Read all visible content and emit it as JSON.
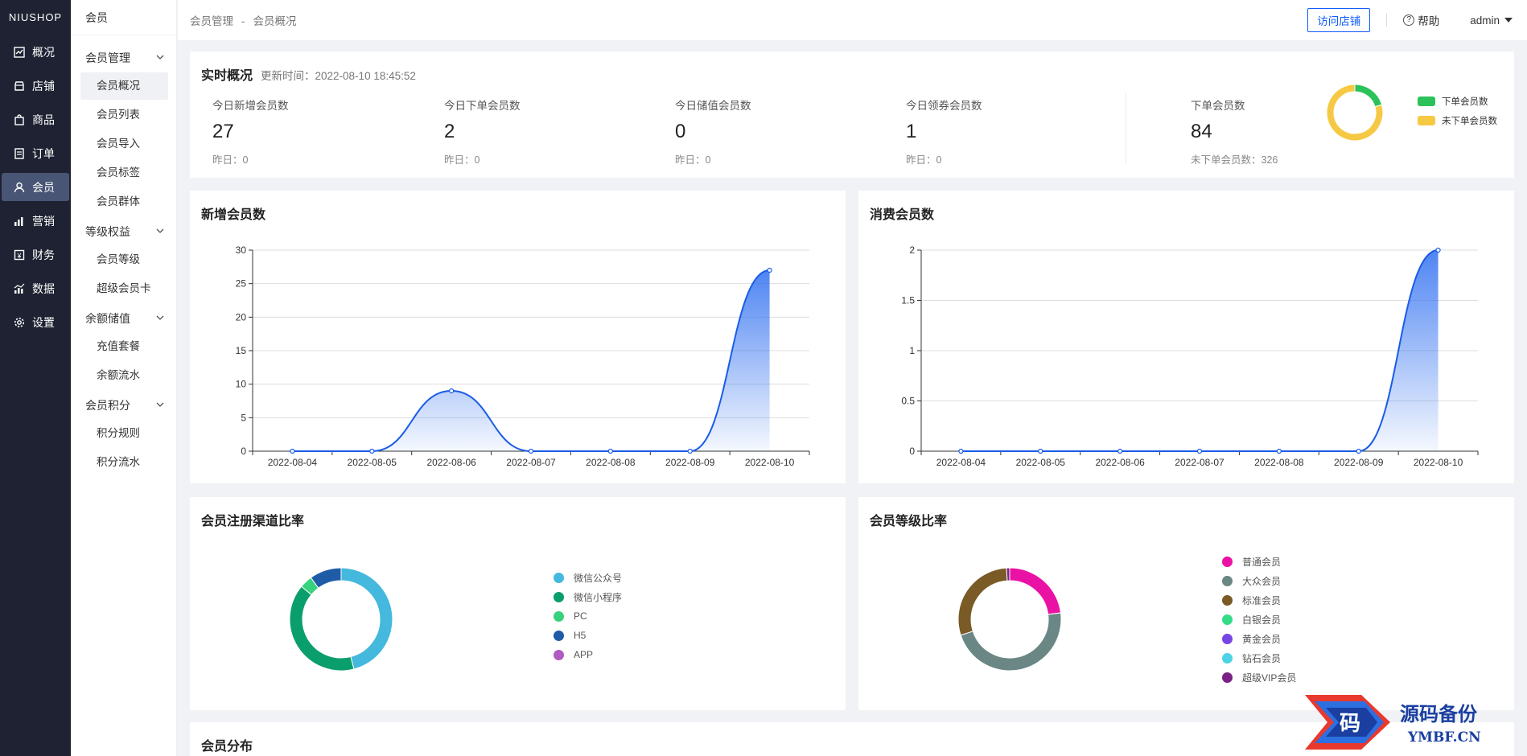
{
  "logo": "NIUSHOP",
  "nav": [
    {
      "label": "概况",
      "icon": "chart-line-icon"
    },
    {
      "label": "店铺",
      "icon": "shop-icon"
    },
    {
      "label": "商品",
      "icon": "goods-icon"
    },
    {
      "label": "订单",
      "icon": "order-icon"
    },
    {
      "label": "会员",
      "icon": "user-icon"
    },
    {
      "label": "营销",
      "icon": "bar-chart-icon"
    },
    {
      "label": "财务",
      "icon": "finance-icon"
    },
    {
      "label": "数据",
      "icon": "data-icon"
    },
    {
      "label": "设置",
      "icon": "gear-icon"
    }
  ],
  "submenu": {
    "title": "会员",
    "groups": [
      {
        "label": "会员管理",
        "items": [
          "会员概况",
          "会员列表",
          "会员导入",
          "会员标签",
          "会员群体"
        ]
      },
      {
        "label": "等级权益",
        "items": [
          "会员等级",
          "超级会员卡"
        ]
      },
      {
        "label": "余额储值",
        "items": [
          "充值套餐",
          "余额流水"
        ]
      },
      {
        "label": "会员积分",
        "items": [
          "积分规则",
          "积分流水"
        ]
      }
    ]
  },
  "breadcrumb": {
    "first": "会员管理",
    "sep": "-",
    "second": "会员概况"
  },
  "top": {
    "visit": "访问店铺",
    "help": "帮助",
    "user": "admin"
  },
  "realtime": {
    "title": "实时概况",
    "update_time": "更新时间：2022-08-10 18:45:52",
    "stats": [
      {
        "label": "今日新增会员数",
        "value": "27",
        "yesterday": "昨日：0"
      },
      {
        "label": "今日下单会员数",
        "value": "2",
        "yesterday": "昨日：0"
      },
      {
        "label": "今日储值会员数",
        "value": "0",
        "yesterday": "昨日：0"
      },
      {
        "label": "今日领券会员数",
        "value": "1",
        "yesterday": "昨日：0"
      }
    ],
    "order_members": {
      "label": "下单会员数",
      "value": "84",
      "sub": "未下单会员数：326"
    },
    "legend": [
      {
        "name": "下单会员数",
        "color": "#2bc25a"
      },
      {
        "name": "未下单会员数",
        "color": "#f6c945"
      }
    ]
  },
  "colors": {
    "accent": "#105cfb",
    "sidebar": "#1e2232",
    "line": "#1a5ce8"
  },
  "cards": {
    "new_members": "新增会员数",
    "consume_members": "消费会员数",
    "channel": "会员注册渠道比率",
    "level": "会员等级比率",
    "distribution": "会员分布"
  },
  "chart_data": [
    {
      "type": "area",
      "title": "新增会员数",
      "x": [
        "2022-08-04",
        "2022-08-05",
        "2022-08-06",
        "2022-08-07",
        "2022-08-08",
        "2022-08-09",
        "2022-08-10"
      ],
      "values": [
        0,
        0,
        9,
        0,
        0,
        0,
        27
      ],
      "ylim": [
        0,
        30
      ],
      "yticks": [
        "0",
        "5",
        "10",
        "15",
        "20",
        "25",
        "30"
      ]
    },
    {
      "type": "area",
      "title": "消费会员数",
      "x": [
        "2022-08-04",
        "2022-08-05",
        "2022-08-06",
        "2022-08-07",
        "2022-08-08",
        "2022-08-09",
        "2022-08-10"
      ],
      "values": [
        0,
        0,
        0,
        0,
        0,
        0,
        2
      ],
      "ylim": [
        0,
        2
      ],
      "yticks": [
        "0",
        "0.5",
        "1",
        "1.5",
        "2"
      ]
    },
    {
      "type": "pie",
      "title": "",
      "slices": [
        {
          "name": "微信公众号",
          "value": 46,
          "color": "#45b8dd"
        },
        {
          "name": "微信小程序",
          "value": 40,
          "color": "#0a9e6c"
        },
        {
          "name": "PC",
          "value": 4,
          "color": "#37d27c"
        },
        {
          "name": "H5",
          "value": 10,
          "color": "#1f5ca8"
        },
        {
          "name": "APP",
          "value": 0,
          "color": "#b05bc1"
        }
      ]
    },
    {
      "type": "pie",
      "title": "",
      "slices": [
        {
          "name": "普通会员",
          "value": 23,
          "color": "#ea12a5"
        },
        {
          "name": "大众会员",
          "value": 47,
          "color": "#6a8785"
        },
        {
          "name": "标准会员",
          "value": 29,
          "color": "#7a5a25"
        },
        {
          "name": "白银会员",
          "value": 0,
          "color": "#33dd88"
        },
        {
          "name": "黄金会员",
          "value": 0,
          "color": "#7845e5"
        },
        {
          "name": "钻石会员",
          "value": 0,
          "color": "#4dd2e6"
        },
        {
          "name": "超级VIP会员",
          "value": 1,
          "color": "#7a2185"
        }
      ]
    },
    {
      "type": "pie",
      "title": "",
      "slices": [
        {
          "name": "下单会员数",
          "value": 84,
          "color": "#2bc25a"
        },
        {
          "name": "未下单会员数",
          "value": 326,
          "color": "#f6c945"
        }
      ]
    }
  ],
  "watermark": {
    "title": "源码备份",
    "url": "YMBF.CN",
    "badge": "码"
  }
}
